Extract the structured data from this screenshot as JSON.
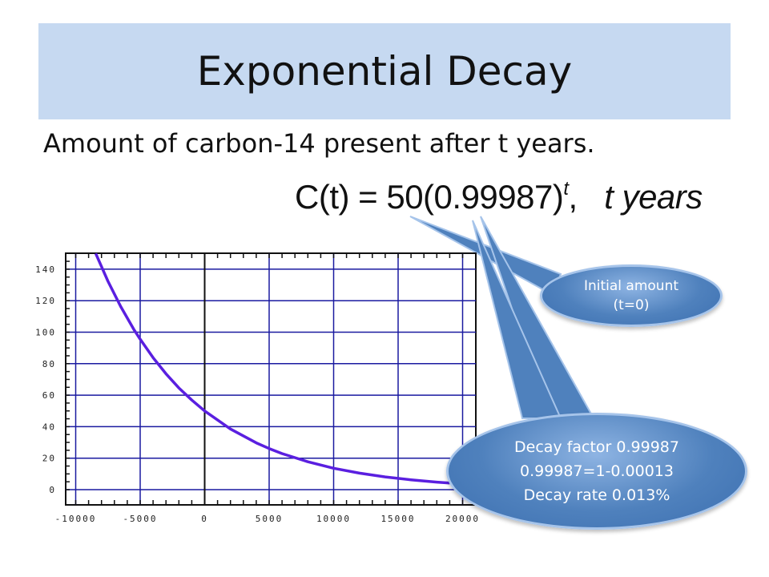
{
  "title": "Exponential Decay",
  "subtitle": "Amount of carbon-14 present after t years.",
  "formula": {
    "lhs": "C(t) = 50(0.99987)",
    "exponent": "t",
    "tail": ",",
    "unit_t": "t",
    "unit_word": "years"
  },
  "callouts": {
    "initial": {
      "line1": "Initial amount",
      "line2": "(t=0)"
    },
    "decay": {
      "line1": "Decay factor 0.99987",
      "line2": "0.99987=1-0.00013",
      "line3": "Decay rate 0.013%"
    }
  },
  "chart_data": {
    "type": "line",
    "title": "",
    "xlabel": "",
    "ylabel": "",
    "xlim": [
      -10000,
      20000
    ],
    "ylim": [
      -5,
      150
    ],
    "grid": true,
    "x_ticks": [
      -10000,
      -5000,
      0,
      5000,
      10000,
      15000,
      20000
    ],
    "x_tick_labels": [
      "-10000",
      "-5000",
      "0",
      "5000",
      "10000",
      "15000",
      "20000"
    ],
    "y_ticks": [
      0,
      20,
      40,
      60,
      80,
      100,
      120,
      140
    ],
    "y_tick_labels": [
      "0",
      "20",
      "40",
      "60",
      "80",
      "100",
      "120",
      "140"
    ],
    "series": [
      {
        "color": "#5a1fe0",
        "x": [
          -8450,
          -7500,
          -6500,
          -5500,
          -5000,
          -4000,
          -3000,
          -2000,
          -1000,
          0,
          2000,
          4000,
          5000,
          6000,
          8000,
          10000,
          12000,
          14000,
          16000,
          18000,
          19000
        ],
        "y": [
          150,
          132.3,
          116.1,
          101.9,
          95.5,
          83.8,
          73.6,
          64.6,
          56.9,
          50,
          38.5,
          29.7,
          26.1,
          22.9,
          17.7,
          13.6,
          10.5,
          8.1,
          6.25,
          4.8,
          4.2
        ]
      }
    ]
  }
}
